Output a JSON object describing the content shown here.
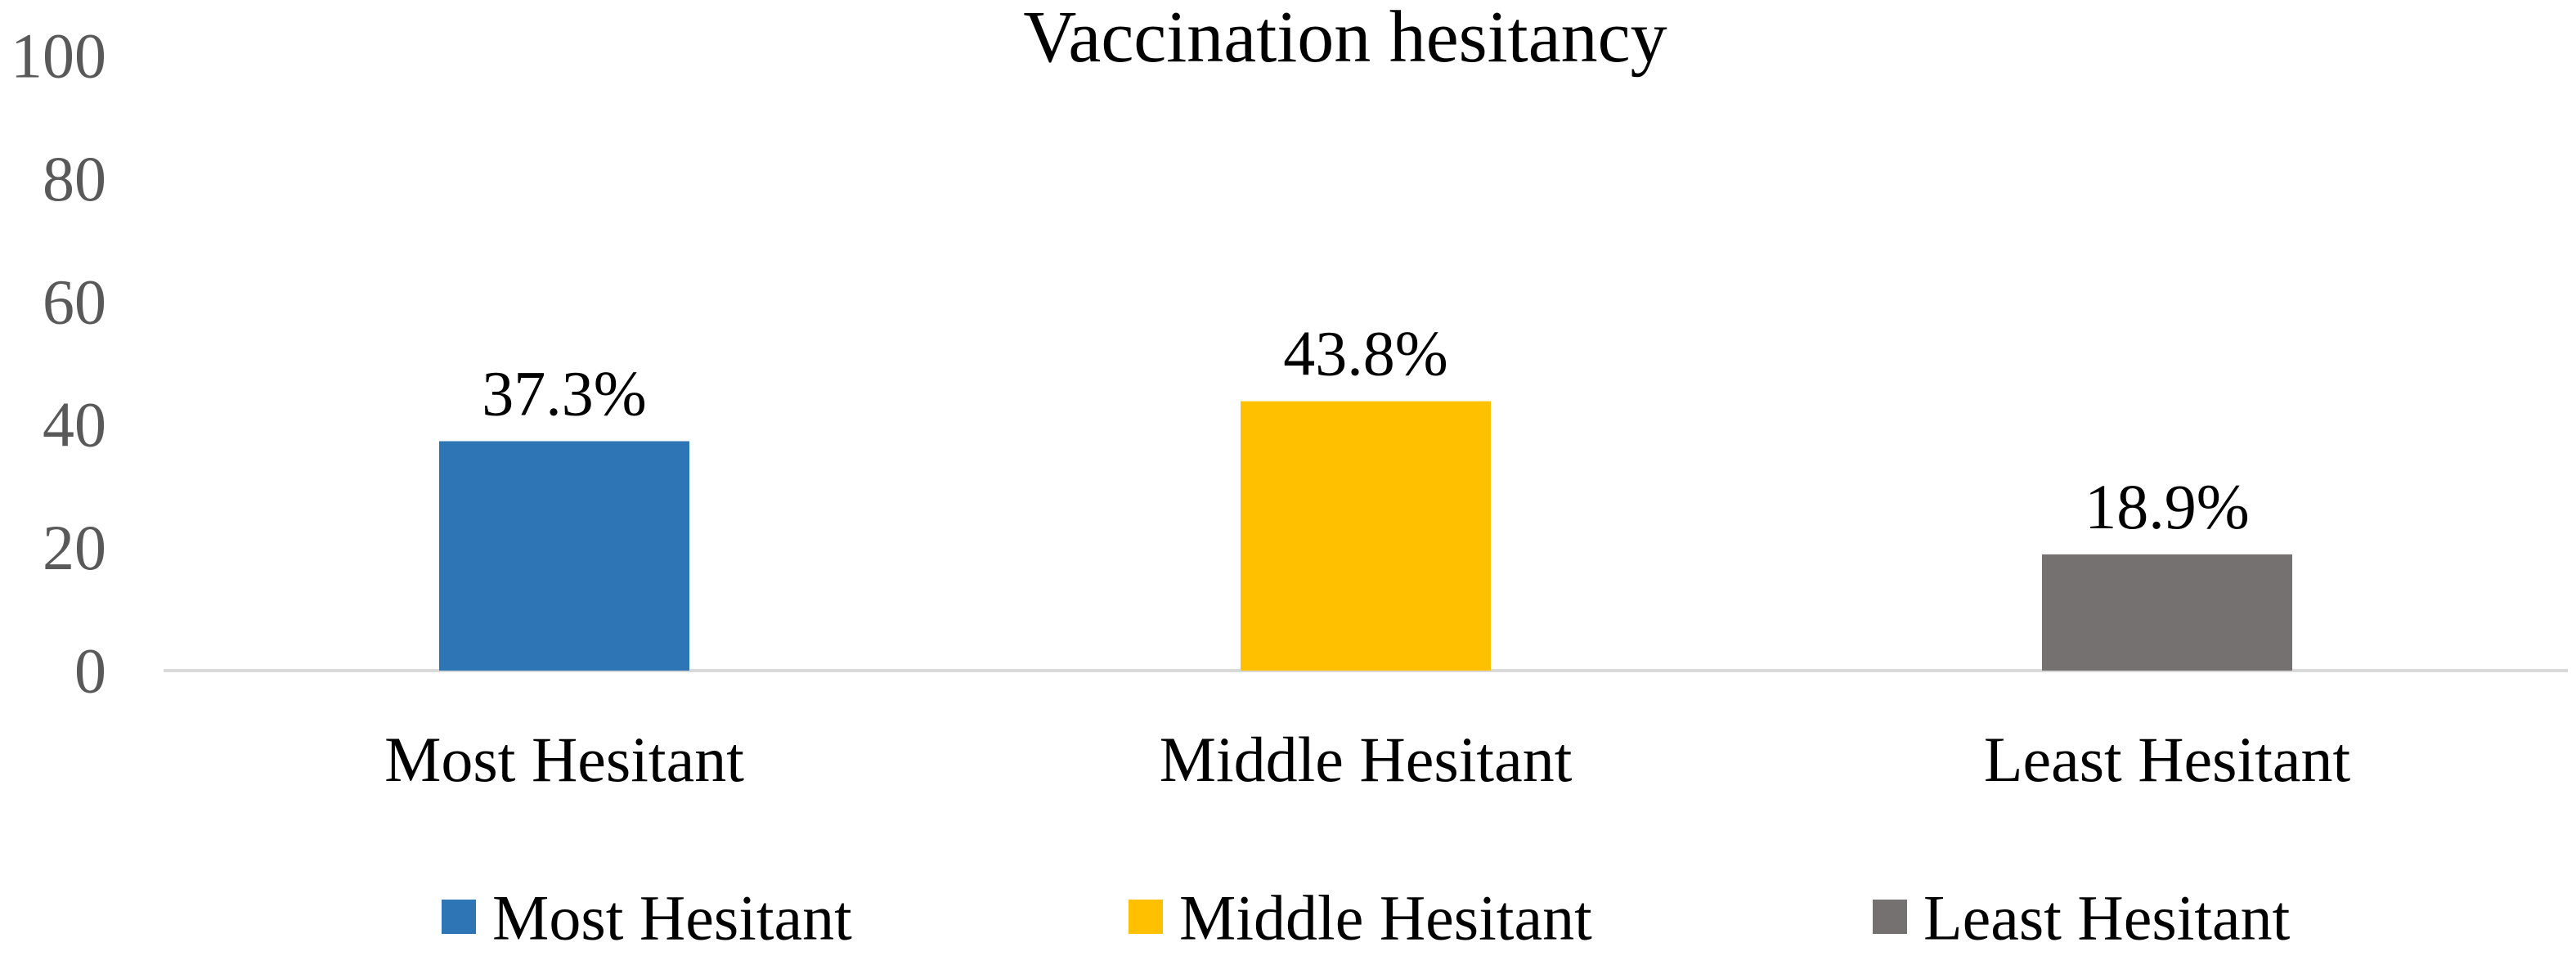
{
  "chart_data": {
    "type": "bar",
    "title": "Vaccination hesitancy",
    "xlabel": "",
    "ylabel": "",
    "ylim": [
      0,
      100
    ],
    "yticks": [
      "0",
      "20",
      "40",
      "60",
      "80",
      "100"
    ],
    "categories": [
      "Most Hesitant",
      "Middle Hesitant",
      "Least Hesitant"
    ],
    "values": [
      37.3,
      43.8,
      18.9
    ],
    "data_labels": [
      "37.3%",
      "43.8%",
      "18.9%"
    ],
    "colors": [
      "#2E75B6",
      "#FFC000",
      "#767171"
    ],
    "grid": false,
    "legend": {
      "placement": "bottom",
      "entries": [
        "Most Hesitant",
        "Middle Hesitant",
        "Least Hesitant"
      ]
    }
  }
}
